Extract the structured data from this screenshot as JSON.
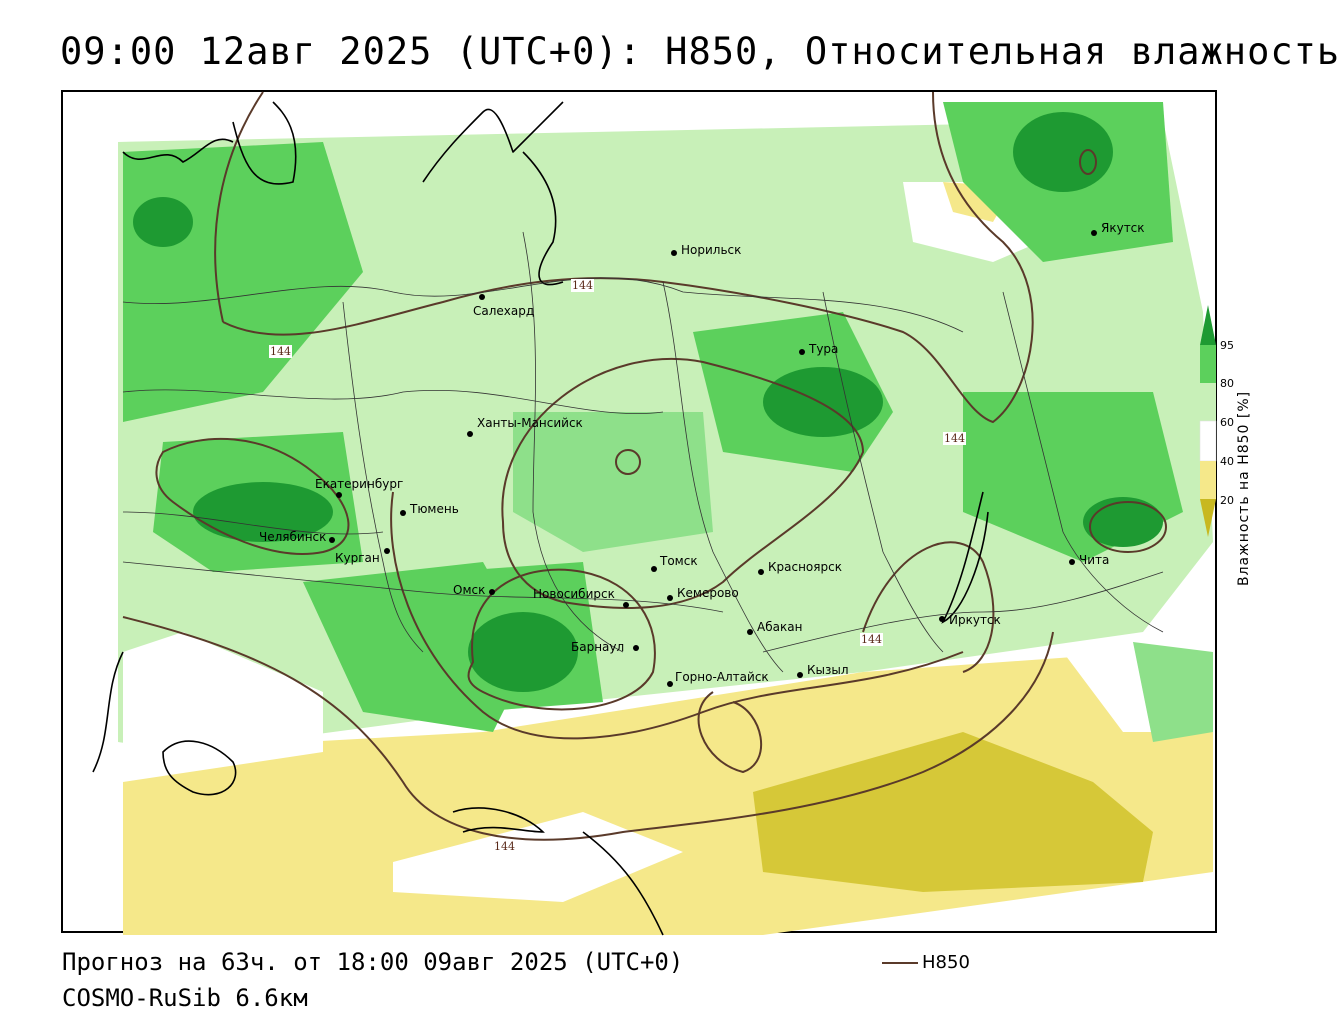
{
  "title": "09:00 12авг 2025 (UTC+0): H850, Относительная влажность",
  "footer": {
    "forecast": "Прогноз на 63ч. от 18:00 09авг 2025 (UTC+0)",
    "model": "COSMO-RuSib 6.6км",
    "contour_legend": "H850"
  },
  "legend": {
    "title": "Влажность на H850 [%]",
    "ticks": [
      "95",
      "80",
      "60",
      "40",
      "20"
    ],
    "colors": {
      "very_dry": "#c8b820",
      "dry": "#f5e88a",
      "neutral": "#ffffff",
      "moist": "#c8f0b8",
      "wet": "#5cd05c",
      "very_wet": "#1e9a32"
    }
  },
  "contour_value_labels": [
    "144",
    "144",
    "144",
    "144",
    "144"
  ],
  "cities": [
    {
      "name": "Якутск"
    },
    {
      "name": "Норильск"
    },
    {
      "name": "Салехард"
    },
    {
      "name": "Тура"
    },
    {
      "name": "Ханты-Мансийск"
    },
    {
      "name": "Екатеринбург"
    },
    {
      "name": "Тюмень"
    },
    {
      "name": "Челябинск"
    },
    {
      "name": "Курган"
    },
    {
      "name": "Омск"
    },
    {
      "name": "Новосибирск"
    },
    {
      "name": "Томск"
    },
    {
      "name": "Кемерово"
    },
    {
      "name": "Красноярск"
    },
    {
      "name": "Абакан"
    },
    {
      "name": "Барнаул"
    },
    {
      "name": "Горно-Алтайск"
    },
    {
      "name": "Кызыл"
    },
    {
      "name": "Иркутск"
    },
    {
      "name": "Чита"
    }
  ]
}
